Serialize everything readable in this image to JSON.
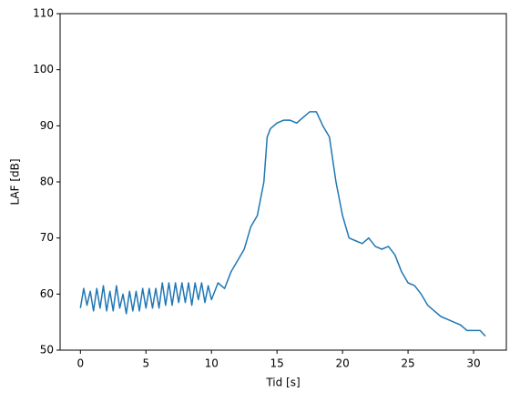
{
  "chart_data": {
    "type": "line",
    "xlabel": "Tid [s]",
    "ylabel": "LAF [dB]",
    "xlim": [
      -1.55,
      32.5
    ],
    "ylim": [
      50,
      110
    ],
    "xticks": [
      0,
      5,
      10,
      15,
      20,
      25,
      30
    ],
    "yticks": [
      50,
      60,
      70,
      80,
      90,
      100,
      110
    ],
    "color": "#1f77b4",
    "x": [
      0,
      0.25,
      0.5,
      0.75,
      1,
      1.25,
      1.5,
      1.75,
      2,
      2.25,
      2.5,
      2.75,
      3,
      3.25,
      3.5,
      3.75,
      4,
      4.25,
      4.5,
      4.75,
      5,
      5.25,
      5.5,
      5.75,
      6,
      6.25,
      6.5,
      6.75,
      7,
      7.25,
      7.5,
      7.75,
      8,
      8.25,
      8.5,
      8.75,
      9,
      9.25,
      9.5,
      9.75,
      10,
      10.5,
      11,
      11.5,
      12,
      12.5,
      13,
      13.5,
      14,
      14.25,
      14.5,
      15,
      15.5,
      16,
      16.5,
      17,
      17.5,
      18,
      18.5,
      19,
      19.5,
      20,
      20.5,
      21,
      21.5,
      22,
      22.5,
      23,
      23.5,
      24,
      24.5,
      25,
      25.5,
      26,
      26.5,
      27,
      27.5,
      28,
      28.5,
      29,
      29.5,
      30,
      30.5,
      30.9
    ],
    "values": [
      57.5,
      61,
      58,
      60.5,
      57,
      61,
      57.5,
      61.5,
      57,
      60.5,
      57,
      61.5,
      57.5,
      60,
      56.5,
      60.5,
      57,
      60.5,
      57,
      61,
      57.5,
      61,
      57.5,
      61,
      57.5,
      62,
      58,
      62,
      58,
      62,
      58.5,
      62,
      58.5,
      62,
      58,
      62,
      59,
      62,
      58.5,
      61.5,
      59,
      62,
      61,
      64,
      66,
      68,
      72,
      74,
      80,
      88,
      89.5,
      90.5,
      91,
      91,
      90.5,
      91.5,
      92.5,
      92.5,
      90,
      88,
      80,
      74,
      70,
      69.5,
      69,
      70,
      68.5,
      68,
      68.5,
      67,
      64,
      62,
      61.5,
      60,
      58,
      57,
      56,
      55.5,
      55,
      54.5,
      53.5,
      53.5,
      53.5,
      52.5
    ]
  }
}
